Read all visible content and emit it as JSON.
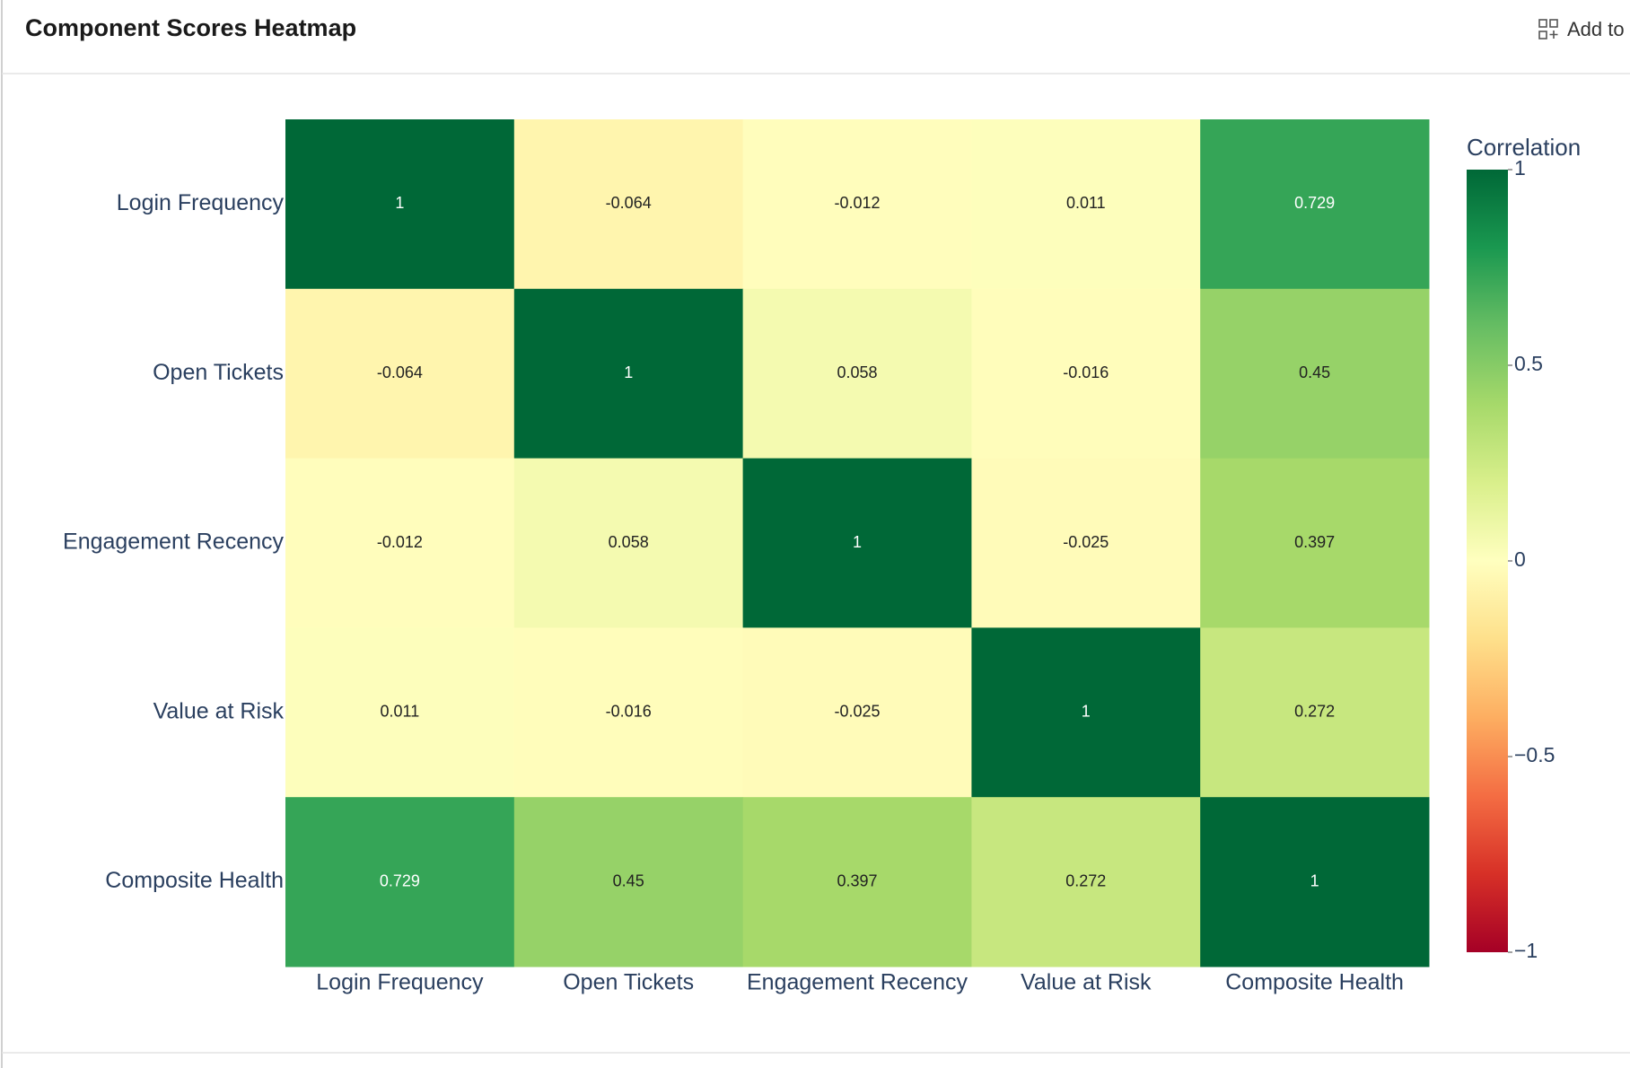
{
  "header": {
    "title": "Component Scores Heatmap",
    "button": "Add to"
  },
  "chart_data": {
    "type": "heatmap",
    "x": [
      "Login Frequency",
      "Open Tickets",
      "Engagement Recency",
      "Value at Risk",
      "Composite Health"
    ],
    "y": [
      "Login Frequency",
      "Open Tickets",
      "Engagement Recency",
      "Value at Risk",
      "Composite Health"
    ],
    "z": [
      [
        1,
        -0.064,
        -0.012,
        0.011,
        0.729
      ],
      [
        -0.064,
        1,
        0.058,
        -0.016,
        0.45
      ],
      [
        -0.012,
        0.058,
        1,
        -0.025,
        0.397
      ],
      [
        0.011,
        -0.016,
        -0.025,
        1,
        0.272
      ],
      [
        0.729,
        0.45,
        0.397,
        0.272,
        1
      ]
    ],
    "colorbar_title": "Correlation",
    "zlim": [
      -1,
      1
    ],
    "zticks": [
      1,
      0.5,
      0,
      {
        "value": -0.5,
        "label": "−0.5"
      },
      {
        "value": -1,
        "label": "−1"
      }
    ],
    "colorscale": [
      "#a50026",
      "#d73027",
      "#f46d43",
      "#fdae61",
      "#fee08b",
      "#ffffbf",
      "#d9ef8b",
      "#a6d96a",
      "#66bd63",
      "#1a9850",
      "#006837"
    ]
  }
}
